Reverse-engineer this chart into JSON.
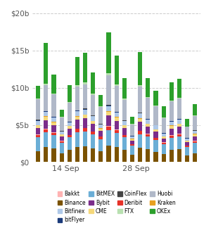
{
  "exchanges_order": [
    "Binance",
    "BitMEX",
    "Deribit",
    "Bakkt",
    "Bybit",
    "CME",
    "Kraken",
    "Bitfinex",
    "bitFlyer",
    "CoinFlex",
    "Huobi",
    "FTX",
    "OKEx"
  ],
  "colors_map": {
    "Bakkt": "#ffb3b3",
    "BitMEX": "#6baed6",
    "Deribit": "#e63229",
    "OKEx": "#2ca02c",
    "Binance": "#7a5200",
    "Bybit": "#7b2d8b",
    "FTX": "#b8e0b0",
    "Bitfinex": "#aec8e8",
    "CME": "#f5d87a",
    "Huobi": "#b0b8c8",
    "bitFlyer": "#1a3a7a",
    "CoinFlex": "#444444",
    "Kraken": "#e8a020"
  },
  "bar_width": 0.55,
  "ylim": [
    0,
    20000000000
  ],
  "yticks": [
    0,
    5000000000,
    10000000000,
    15000000000,
    20000000000
  ],
  "ytick_labels": [
    "$0",
    "$5b",
    "$10b",
    "$15b",
    "$20b"
  ],
  "xtick_positions": [
    3.5,
    12.5
  ],
  "xtick_labels": [
    "14 Sep",
    "28 Sep"
  ],
  "grid_color": "#cccccc",
  "bg_color": "#ffffff",
  "bars": [
    {
      "Binance": 1500000000.0,
      "BitMEX": 1800000000.0,
      "Deribit": 350000000.0,
      "Bakkt": 50000000.0,
      "Bybit": 900000000.0,
      "CME": 350000000.0,
      "Kraken": 50000000.0,
      "Bitfinex": 550000000.0,
      "bitFlyer": 70000000.0,
      "CoinFlex": 50000000.0,
      "Huobi": 2800000000.0,
      "FTX": 120000000.0,
      "OKEx": 1700000000.0
    },
    {
      "Binance": 2000000000.0,
      "BitMEX": 2000000000.0,
      "Deribit": 400000000.0,
      "Bakkt": 50000000.0,
      "Bybit": 1200000000.0,
      "CME": 450000000.0,
      "Kraken": 60000000.0,
      "Bitfinex": 600000000.0,
      "bitFlyer": 70000000.0,
      "CoinFlex": 50000000.0,
      "Huobi": 3500000000.0,
      "FTX": 180000000.0,
      "OKEx": 5500000000.0
    },
    {
      "Binance": 1800000000.0,
      "BitMEX": 1800000000.0,
      "Deribit": 350000000.0,
      "Bakkt": 50000000.0,
      "Bybit": 1000000000.0,
      "CME": 380000000.0,
      "Kraken": 50000000.0,
      "Bitfinex": 550000000.0,
      "bitFlyer": 70000000.0,
      "CoinFlex": 50000000.0,
      "Huobi": 3000000000.0,
      "FTX": 150000000.0,
      "OKEx": 2500000000.0
    },
    {
      "Binance": 1200000000.0,
      "BitMEX": 1400000000.0,
      "Deribit": 200000000.0,
      "Bakkt": 40000000.0,
      "Bybit": 600000000.0,
      "CME": 250000000.0,
      "Kraken": 30000000.0,
      "Bitfinex": 380000000.0,
      "bitFlyer": 50000000.0,
      "CoinFlex": 30000000.0,
      "Huobi": 1800000000.0,
      "FTX": 80000000.0,
      "OKEx": 1000000000.0
    },
    {
      "Binance": 1600000000.0,
      "BitMEX": 1700000000.0,
      "Deribit": 300000000.0,
      "Bakkt": 50000000.0,
      "Bybit": 850000000.0,
      "CME": 320000000.0,
      "Kraken": 40000000.0,
      "Bitfinex": 500000000.0,
      "bitFlyer": 60000000.0,
      "CoinFlex": 40000000.0,
      "Huobi": 2500000000.0,
      "FTX": 120000000.0,
      "OKEx": 2300000000.0
    },
    {
      "Binance": 2000000000.0,
      "BitMEX": 2000000000.0,
      "Deribit": 450000000.0,
      "Bakkt": 50000000.0,
      "Bybit": 1200000000.0,
      "CME": 420000000.0,
      "Kraken": 60000000.0,
      "Bitfinex": 650000000.0,
      "bitFlyer": 70000000.0,
      "CoinFlex": 50000000.0,
      "Huobi": 3200000000.0,
      "FTX": 200000000.0,
      "OKEx": 3800000000.0
    },
    {
      "Binance": 2100000000.0,
      "BitMEX": 2000000000.0,
      "Deribit": 450000000.0,
      "Bakkt": 50000000.0,
      "Bybit": 1300000000.0,
      "CME": 450000000.0,
      "Kraken": 70000000.0,
      "Bitfinex": 650000000.0,
      "bitFlyer": 70000000.0,
      "CoinFlex": 50000000.0,
      "Huobi": 3300000000.0,
      "FTX": 220000000.0,
      "OKEx": 4000000000.0
    },
    {
      "Binance": 1800000000.0,
      "BitMEX": 1900000000.0,
      "Deribit": 380000000.0,
      "Bakkt": 50000000.0,
      "Bybit": 1000000000.0,
      "CME": 380000000.0,
      "Kraken": 50000000.0,
      "Bitfinex": 580000000.0,
      "bitFlyer": 70000000.0,
      "CoinFlex": 50000000.0,
      "Huobi": 2800000000.0,
      "FTX": 150000000.0,
      "OKEx": 2800000000.0
    },
    {
      "Binance": 1500000000.0,
      "BitMEX": 1600000000.0,
      "Deribit": 300000000.0,
      "Bakkt": 40000000.0,
      "Bybit": 750000000.0,
      "CME": 300000000.0,
      "Kraken": 40000000.0,
      "Bitfinex": 480000000.0,
      "bitFlyer": 60000000.0,
      "CoinFlex": 40000000.0,
      "Huobi": 2300000000.0,
      "FTX": 120000000.0,
      "OKEx": 1500000000.0
    },
    {
      "Binance": 2200000000.0,
      "BitMEX": 2100000000.0,
      "Deribit": 500000000.0,
      "Bakkt": 60000000.0,
      "Bybit": 1400000000.0,
      "CME": 500000000.0,
      "Kraken": 70000000.0,
      "Bitfinex": 700000000.0,
      "bitFlyer": 80000000.0,
      "CoinFlex": 60000000.0,
      "Huobi": 4000000000.0,
      "FTX": 250000000.0,
      "OKEx": 5500000000.0
    },
    {
      "Binance": 2000000000.0,
      "BitMEX": 1900000000.0,
      "Deribit": 420000000.0,
      "Bakkt": 50000000.0,
      "Bybit": 1200000000.0,
      "CME": 420000000.0,
      "Kraken": 60000000.0,
      "Bitfinex": 620000000.0,
      "bitFlyer": 70000000.0,
      "CoinFlex": 50000000.0,
      "Huobi": 3500000000.0,
      "FTX": 200000000.0,
      "OKEx": 3800000000.0
    },
    {
      "Binance": 1600000000.0,
      "BitMEX": 1700000000.0,
      "Deribit": 320000000.0,
      "Bakkt": 40000000.0,
      "Bybit": 900000000.0,
      "CME": 350000000.0,
      "Kraken": 50000000.0,
      "Bitfinex": 520000000.0,
      "bitFlyer": 60000000.0,
      "CoinFlex": 40000000.0,
      "Huobi": 2800000000.0,
      "FTX": 150000000.0,
      "OKEx": 2800000000.0
    },
    {
      "Binance": 1000000000.0,
      "BitMEX": 1200000000.0,
      "Deribit": 180000000.0,
      "Bakkt": 30000000.0,
      "Bybit": 500000000.0,
      "CME": 200000000.0,
      "Kraken": 30000000.0,
      "Bitfinex": 320000000.0,
      "bitFlyer": 40000000.0,
      "CoinFlex": 20000000.0,
      "Huobi": 1500000000.0,
      "FTX": 80000000.0,
      "OKEx": 1000000000.0
    },
    {
      "Binance": 1900000000.0,
      "BitMEX": 1850000000.0,
      "Deribit": 420000000.0,
      "Bakkt": 50000000.0,
      "Bybit": 1200000000.0,
      "CME": 420000000.0,
      "Kraken": 60000000.0,
      "Bitfinex": 620000000.0,
      "bitFlyer": 70000000.0,
      "CoinFlex": 50000000.0,
      "Huobi": 3500000000.0,
      "FTX": 200000000.0,
      "OKEx": 4500000000.0
    },
    {
      "Binance": 1700000000.0,
      "BitMEX": 1700000000.0,
      "Deribit": 350000000.0,
      "Bakkt": 40000000.0,
      "Bybit": 950000000.0,
      "CME": 380000000.0,
      "Kraken": 50000000.0,
      "Bitfinex": 550000000.0,
      "bitFlyer": 60000000.0,
      "CoinFlex": 40000000.0,
      "Huobi": 2800000000.0,
      "FTX": 150000000.0,
      "OKEx": 2500000000.0
    },
    {
      "Binance": 1400000000.0,
      "BitMEX": 1550000000.0,
      "Deribit": 280000000.0,
      "Bakkt": 40000000.0,
      "Bybit": 800000000.0,
      "CME": 320000000.0,
      "Kraken": 40000000.0,
      "Bitfinex": 480000000.0,
      "bitFlyer": 60000000.0,
      "CoinFlex": 30000000.0,
      "Huobi": 2500000000.0,
      "FTX": 120000000.0,
      "OKEx": 2000000000.0
    },
    {
      "Binance": 1100000000.0,
      "BitMEX": 1300000000.0,
      "Deribit": 220000000.0,
      "Bakkt": 30000000.0,
      "Bybit": 550000000.0,
      "CME": 240000000.0,
      "Kraken": 30000000.0,
      "Bitfinex": 350000000.0,
      "bitFlyer": 50000000.0,
      "CoinFlex": 30000000.0,
      "Huobi": 2000000000.0,
      "FTX": 90000000.0,
      "OKEx": 1500000000.0
    },
    {
      "Binance": 1600000000.0,
      "BitMEX": 1650000000.0,
      "Deribit": 330000000.0,
      "Bakkt": 40000000.0,
      "Bybit": 900000000.0,
      "CME": 360000000.0,
      "Kraken": 50000000.0,
      "Bitfinex": 520000000.0,
      "bitFlyer": 60000000.0,
      "CoinFlex": 40000000.0,
      "Huobi": 2600000000.0,
      "FTX": 140000000.0,
      "OKEx": 2400000000.0
    },
    {
      "Binance": 1700000000.0,
      "BitMEX": 1700000000.0,
      "Deribit": 350000000.0,
      "Bakkt": 40000000.0,
      "Bybit": 950000000.0,
      "CME": 380000000.0,
      "Kraken": 50000000.0,
      "Bitfinex": 550000000.0,
      "bitFlyer": 60000000.0,
      "CoinFlex": 40000000.0,
      "Huobi": 2700000000.0,
      "FTX": 150000000.0,
      "OKEx": 2500000000.0
    },
    {
      "Binance": 900000000.0,
      "BitMEX": 1100000000.0,
      "Deribit": 180000000.0,
      "Bakkt": 30000000.0,
      "Bybit": 450000000.0,
      "CME": 200000000.0,
      "Kraken": 20000000.0,
      "Bitfinex": 300000000.0,
      "bitFlyer": 40000000.0,
      "CoinFlex": 20000000.0,
      "Huobi": 1500000000.0,
      "FTX": 70000000.0,
      "OKEx": 1000000000.0
    },
    {
      "Binance": 1200000000.0,
      "BitMEX": 1350000000.0,
      "Deribit": 250000000.0,
      "Bakkt": 30000000.0,
      "Bybit": 650000000.0,
      "CME": 270000000.0,
      "Kraken": 30000000.0,
      "Bitfinex": 400000000.0,
      "bitFlyer": 50000000.0,
      "CoinFlex": 30000000.0,
      "Huobi": 1900000000.0,
      "FTX": 100000000.0,
      "OKEx": 1500000000.0
    }
  ],
  "legend_entries": [
    {
      "label": "Bakkt",
      "color": "#ffb3b3"
    },
    {
      "label": "Binance",
      "color": "#7a5200"
    },
    {
      "label": "Bitfinex",
      "color": "#aec8e8"
    },
    {
      "label": "bitFlyer",
      "color": "#1a3a7a"
    },
    {
      "label": "BitMEX",
      "color": "#6baed6"
    },
    {
      "label": "Bybit",
      "color": "#7b2d8b"
    },
    {
      "label": "CME",
      "color": "#f5d87a"
    },
    {
      "label": "CoinFlex",
      "color": "#444444"
    },
    {
      "label": "Deribit",
      "color": "#e63229"
    },
    {
      "label": "FTX",
      "color": "#b8e0b0"
    },
    {
      "label": "Huobi",
      "color": "#b0b8c8"
    },
    {
      "label": "Kraken",
      "color": "#e8a020"
    },
    {
      "label": "OKEx",
      "color": "#2ca02c"
    }
  ]
}
